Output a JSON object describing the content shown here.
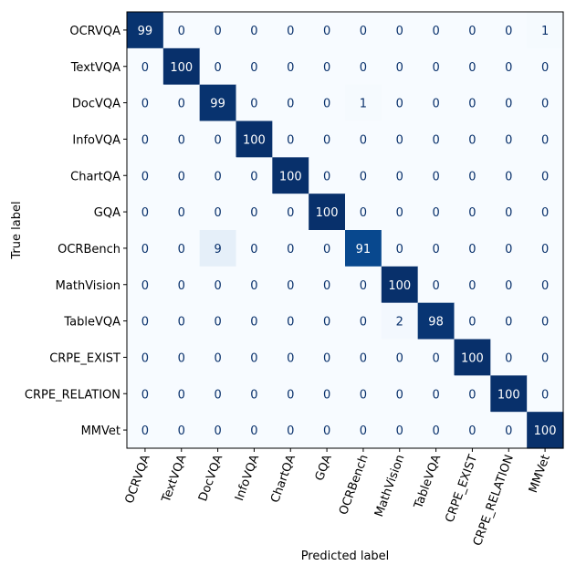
{
  "chart_data": {
    "type": "heatmap",
    "title": "",
    "xlabel": "Predicted label",
    "ylabel": "True label",
    "x_categories": [
      "OCRVQA",
      "TextVQA",
      "DocVQA",
      "InfoVQA",
      "ChartQA",
      "GQA",
      "OCRBench",
      "MathVision",
      "TableVQA",
      "CRPE_EXIST",
      "CRPE_RELATION",
      "MMVet"
    ],
    "y_categories": [
      "OCRVQA",
      "TextVQA",
      "DocVQA",
      "InfoVQA",
      "ChartQA",
      "GQA",
      "OCRBench",
      "MathVision",
      "TableVQA",
      "CRPE_EXIST",
      "CRPE_RELATION",
      "MMVet"
    ],
    "values": [
      [
        99,
        0,
        0,
        0,
        0,
        0,
        0,
        0,
        0,
        0,
        0,
        1
      ],
      [
        0,
        100,
        0,
        0,
        0,
        0,
        0,
        0,
        0,
        0,
        0,
        0
      ],
      [
        0,
        0,
        99,
        0,
        0,
        0,
        1,
        0,
        0,
        0,
        0,
        0
      ],
      [
        0,
        0,
        0,
        100,
        0,
        0,
        0,
        0,
        0,
        0,
        0,
        0
      ],
      [
        0,
        0,
        0,
        0,
        100,
        0,
        0,
        0,
        0,
        0,
        0,
        0
      ],
      [
        0,
        0,
        0,
        0,
        0,
        100,
        0,
        0,
        0,
        0,
        0,
        0
      ],
      [
        0,
        0,
        9,
        0,
        0,
        0,
        91,
        0,
        0,
        0,
        0,
        0
      ],
      [
        0,
        0,
        0,
        0,
        0,
        0,
        0,
        100,
        0,
        0,
        0,
        0
      ],
      [
        0,
        0,
        0,
        0,
        0,
        0,
        0,
        2,
        98,
        0,
        0,
        0
      ],
      [
        0,
        0,
        0,
        0,
        0,
        0,
        0,
        0,
        0,
        100,
        0,
        0
      ],
      [
        0,
        0,
        0,
        0,
        0,
        0,
        0,
        0,
        0,
        0,
        100,
        0
      ],
      [
        0,
        0,
        0,
        0,
        0,
        0,
        0,
        0,
        0,
        0,
        0,
        100
      ]
    ],
    "value_range": [
      0,
      100
    ],
    "colormap": "Blues",
    "colors": {
      "low": "#f7fbff",
      "high": "#08306b",
      "text_dark_bg": "#ffffff",
      "text_light_bg": "#08306b"
    },
    "grid": false,
    "legend": "none"
  }
}
